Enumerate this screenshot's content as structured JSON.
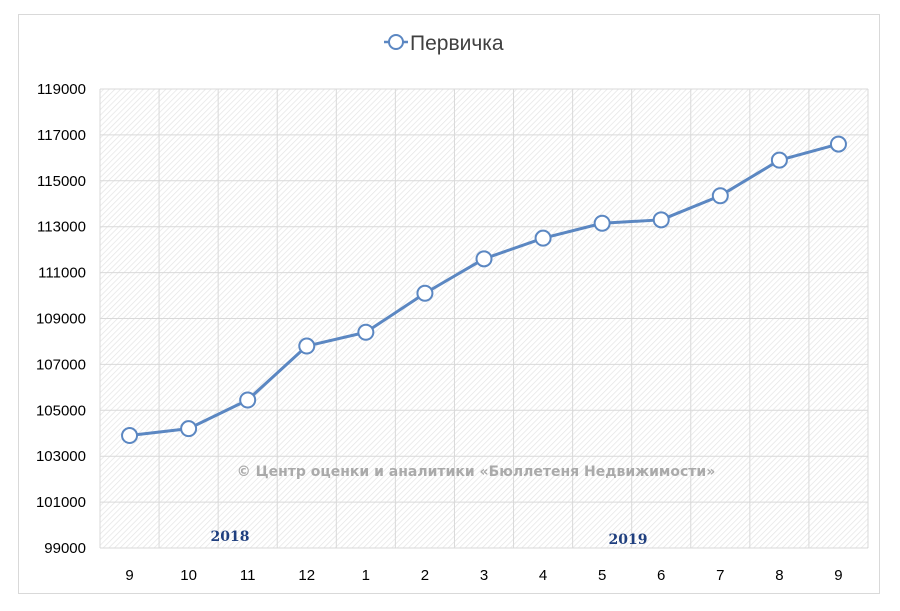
{
  "chart_data": {
    "type": "line",
    "categories": [
      "9",
      "10",
      "11",
      "12",
      "1",
      "2",
      "3",
      "4",
      "5",
      "6",
      "7",
      "8",
      "9"
    ],
    "series": [
      {
        "name": "Первичка",
        "values": [
          103900,
          104200,
          105450,
          107800,
          108400,
          110100,
          111600,
          112500,
          113150,
          113300,
          114350,
          115900,
          116600
        ],
        "color": "#5b87c2"
      }
    ],
    "ylim": [
      99000,
      119000
    ],
    "yticks": [
      "99000",
      "101000",
      "103000",
      "105000",
      "107000",
      "109000",
      "111000",
      "113000",
      "115000",
      "117000",
      "119000"
    ],
    "year_labels": [
      "2018",
      "2019"
    ],
    "legend_position": "top",
    "grid": true,
    "watermark": "© Центр оценки и аналитики «Бюллетеня Недвижимости»"
  }
}
